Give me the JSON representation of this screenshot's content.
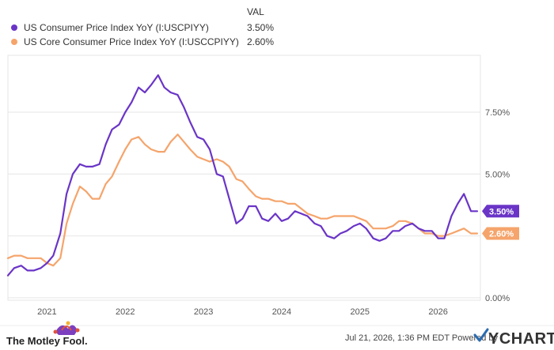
{
  "legend": {
    "header": "VAL",
    "items": [
      {
        "label": "US Consumer Price Index YoY (I:USCPIYY)",
        "value": "3.50%",
        "color": "#6a35c7"
      },
      {
        "label": "US Core Consumer Price Index YoY (I:USCCPIYY)",
        "value": "2.60%",
        "color": "#f5a46b"
      }
    ]
  },
  "footer": {
    "brand": "The Motley Fool.",
    "timestamp": "Jul 21, 2026, 1:36 PM EDT Powered by",
    "logo": "YCHARTS"
  },
  "chart_data": {
    "type": "line",
    "xlim": [
      2020.5,
      2026.54
    ],
    "ylim": [
      -0.1,
      9.8
    ],
    "x_ticks": [
      {
        "value": 2021,
        "label": "2021"
      },
      {
        "value": 2022,
        "label": "2022"
      },
      {
        "value": 2023,
        "label": "2023"
      },
      {
        "value": 2024,
        "label": "2024"
      },
      {
        "value": 2025,
        "label": "2025"
      },
      {
        "value": 2026,
        "label": "2026"
      }
    ],
    "y_ticks": [
      {
        "value": 0,
        "label": "0.00%"
      },
      {
        "value": 2.5,
        "label": ""
      },
      {
        "value": 5,
        "label": "5.00%"
      },
      {
        "value": 7.5,
        "label": "7.50%"
      }
    ],
    "gridlines": "horizontal",
    "end_labels": [
      {
        "series": 0,
        "value": 3.5,
        "label": "3.50%"
      },
      {
        "series": 1,
        "value": 2.6,
        "label": "2.60%"
      }
    ],
    "series": [
      {
        "name": "US Consumer Price Index YoY (I:USCPIYY)",
        "color": "#6a35c7",
        "x": [
          2020.5,
          2020.58,
          2020.67,
          2020.75,
          2020.83,
          2020.92,
          2021.0,
          2021.08,
          2021.17,
          2021.25,
          2021.33,
          2021.42,
          2021.5,
          2021.58,
          2021.67,
          2021.75,
          2021.83,
          2021.92,
          2022.0,
          2022.08,
          2022.17,
          2022.25,
          2022.33,
          2022.42,
          2022.5,
          2022.58,
          2022.67,
          2022.75,
          2022.83,
          2022.92,
          2023.0,
          2023.08,
          2023.17,
          2023.25,
          2023.33,
          2023.42,
          2023.5,
          2023.58,
          2023.67,
          2023.75,
          2023.83,
          2023.92,
          2024.0,
          2024.08,
          2024.17,
          2024.25,
          2024.33,
          2024.42,
          2024.5,
          2024.58,
          2024.67,
          2024.75,
          2024.83,
          2024.92,
          2025.0,
          2025.08,
          2025.17,
          2025.25,
          2025.33,
          2025.42,
          2025.5,
          2025.58,
          2025.67,
          2025.75,
          2025.83,
          2025.92,
          2026.0,
          2026.08,
          2026.17,
          2026.25,
          2026.33,
          2026.42,
          2026.5
        ],
        "values": [
          0.9,
          1.2,
          1.3,
          1.1,
          1.1,
          1.2,
          1.4,
          1.7,
          2.6,
          4.2,
          5.0,
          5.4,
          5.3,
          5.3,
          5.4,
          6.2,
          6.8,
          7.0,
          7.5,
          7.9,
          8.5,
          8.3,
          8.6,
          9.0,
          8.5,
          8.3,
          8.2,
          7.7,
          7.1,
          6.5,
          6.4,
          6.0,
          5.0,
          4.9,
          4.0,
          3.0,
          3.2,
          3.7,
          3.7,
          3.2,
          3.1,
          3.4,
          3.1,
          3.2,
          3.5,
          3.4,
          3.3,
          3.0,
          2.9,
          2.5,
          2.4,
          2.6,
          2.7,
          2.9,
          3.0,
          2.8,
          2.4,
          2.3,
          2.4,
          2.7,
          2.7,
          2.9,
          3.0,
          2.8,
          2.7,
          2.7,
          2.4,
          2.4,
          3.3,
          3.8,
          4.2,
          3.5,
          3.5
        ]
      },
      {
        "name": "US Core Consumer Price Index YoY (I:USCCPIYY)",
        "color": "#f5a46b",
        "x": [
          2020.5,
          2020.58,
          2020.67,
          2020.75,
          2020.83,
          2020.92,
          2021.0,
          2021.08,
          2021.17,
          2021.25,
          2021.33,
          2021.42,
          2021.5,
          2021.58,
          2021.67,
          2021.75,
          2021.83,
          2021.92,
          2022.0,
          2022.08,
          2022.17,
          2022.25,
          2022.33,
          2022.42,
          2022.5,
          2022.58,
          2022.67,
          2022.75,
          2022.83,
          2022.92,
          2023.0,
          2023.08,
          2023.17,
          2023.25,
          2023.33,
          2023.42,
          2023.5,
          2023.58,
          2023.67,
          2023.75,
          2023.83,
          2023.92,
          2024.0,
          2024.08,
          2024.17,
          2024.25,
          2024.33,
          2024.42,
          2024.5,
          2024.58,
          2024.67,
          2024.75,
          2024.83,
          2024.92,
          2025.0,
          2025.08,
          2025.17,
          2025.25,
          2025.33,
          2025.42,
          2025.5,
          2025.58,
          2025.67,
          2025.75,
          2025.83,
          2025.92,
          2026.0,
          2026.08,
          2026.17,
          2026.25,
          2026.33,
          2026.42,
          2026.5
        ],
        "values": [
          1.6,
          1.7,
          1.7,
          1.6,
          1.6,
          1.6,
          1.4,
          1.3,
          1.6,
          3.0,
          3.8,
          4.5,
          4.3,
          4.0,
          4.0,
          4.6,
          4.9,
          5.5,
          6.0,
          6.4,
          6.5,
          6.2,
          6.0,
          5.9,
          5.9,
          6.3,
          6.6,
          6.3,
          6.0,
          5.7,
          5.6,
          5.5,
          5.6,
          5.5,
          5.3,
          4.8,
          4.7,
          4.4,
          4.1,
          4.0,
          4.0,
          3.9,
          3.9,
          3.8,
          3.8,
          3.6,
          3.4,
          3.3,
          3.2,
          3.2,
          3.3,
          3.3,
          3.3,
          3.3,
          3.2,
          3.1,
          2.8,
          2.8,
          2.8,
          2.9,
          3.1,
          3.1,
          3.0,
          2.8,
          2.6,
          2.6,
          2.5,
          2.5,
          2.6,
          2.7,
          2.8,
          2.6,
          2.6
        ]
      }
    ]
  }
}
